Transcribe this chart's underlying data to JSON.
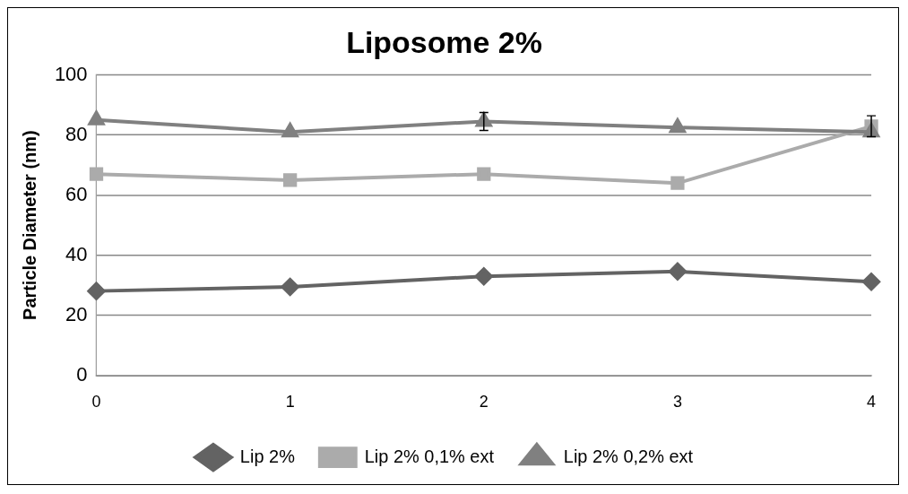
{
  "chart_data": {
    "type": "line",
    "title": "Liposome 2%",
    "ylabel": "Particle Diameter (nm)",
    "categories": [
      "0",
      "1",
      "2",
      "3",
      "4"
    ],
    "series": [
      {
        "name": "Lip 2%",
        "color": "#636363",
        "marker": "diamond",
        "values": [
          28.1,
          29.5,
          33,
          34.6,
          31.2
        ]
      },
      {
        "name": "Lip 2% 0,1% ext",
        "color": "#ababab",
        "marker": "square",
        "values": [
          67,
          65,
          67,
          64,
          82.9
        ],
        "errors": [
          null,
          null,
          null,
          null,
          3.5
        ]
      },
      {
        "name": "Lip 2% 0,2% ext",
        "color": "#808080",
        "marker": "triangle",
        "values": [
          85,
          81,
          84.5,
          82.5,
          81
        ],
        "errors": [
          null,
          null,
          3,
          null,
          null
        ]
      }
    ],
    "ylim": [
      0,
      100
    ],
    "yticks": [
      0,
      20,
      40,
      60,
      80,
      100
    ],
    "grid": "y",
    "legend": "bottom",
    "line_style": "solid"
  }
}
